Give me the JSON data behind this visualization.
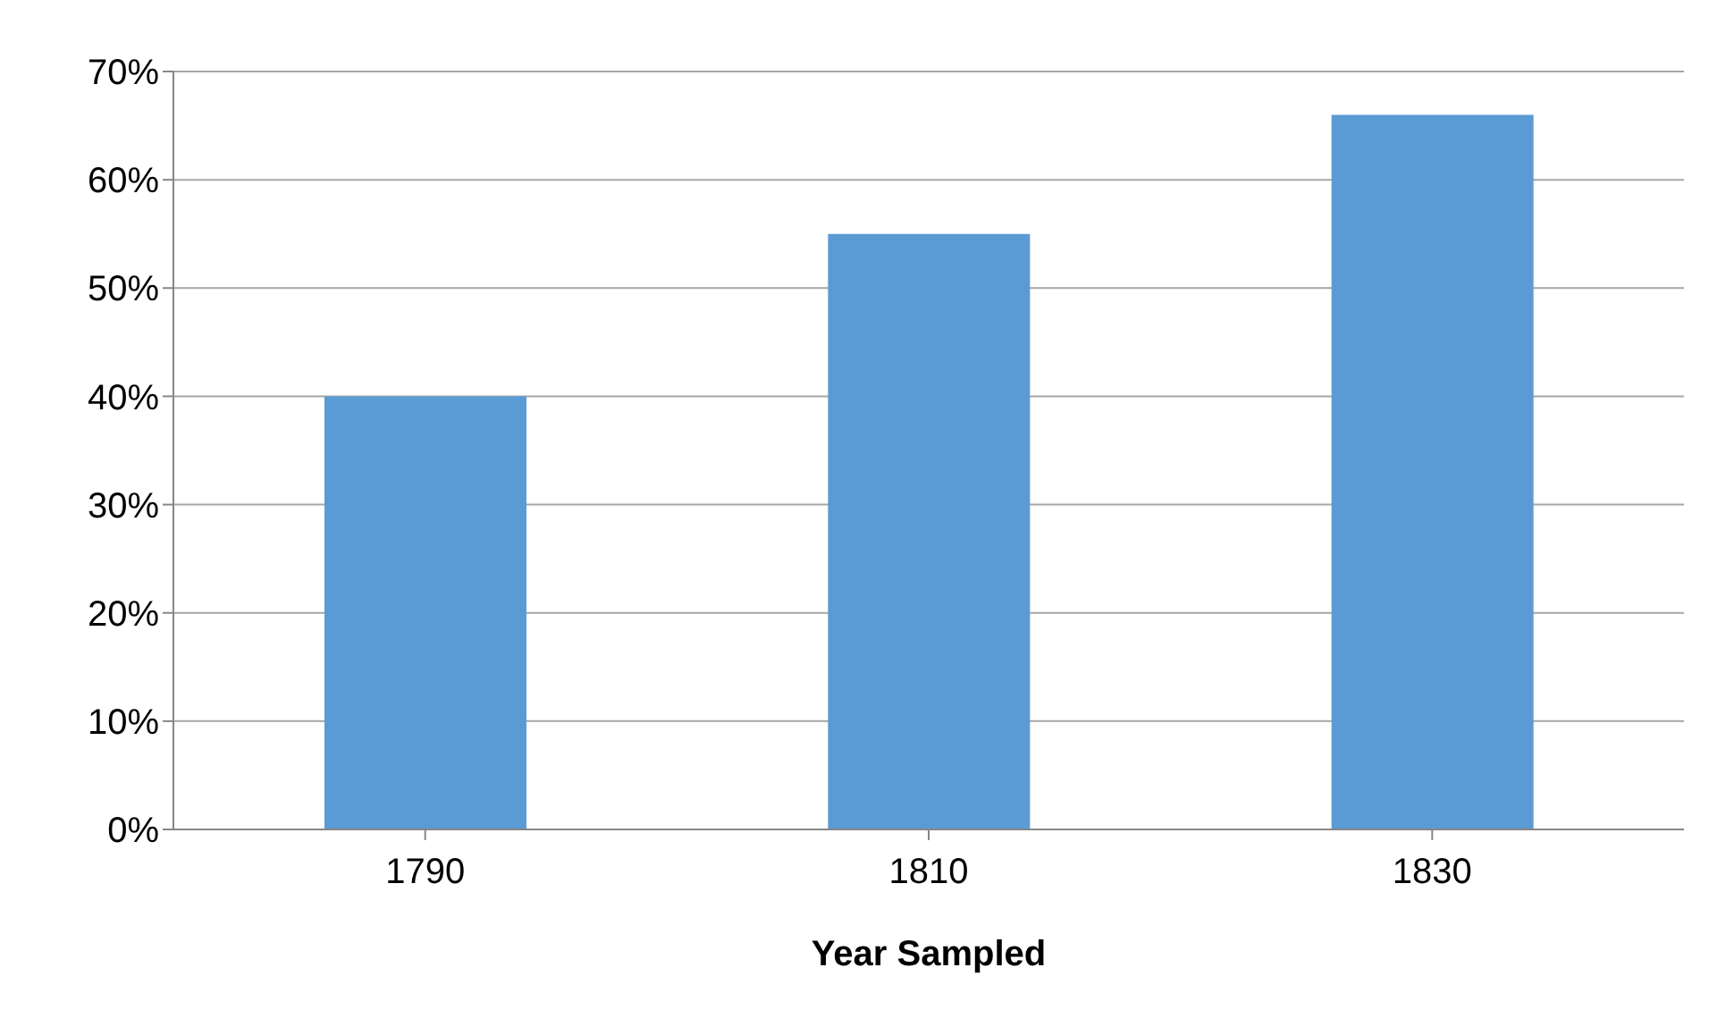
{
  "chart_data": {
    "type": "bar",
    "xlabel": "Year Sampled",
    "categories": [
      "1790",
      "1810",
      "1830"
    ],
    "values": [
      40,
      55,
      66
    ],
    "color": "#5b9bd5",
    "ylim": [
      0,
      70
    ],
    "yticks": [
      {
        "value": 0,
        "label": "0%"
      },
      {
        "value": 10,
        "label": "10%"
      },
      {
        "value": 20,
        "label": "20%"
      },
      {
        "value": 30,
        "label": "30%"
      },
      {
        "value": 40,
        "label": "40%"
      },
      {
        "value": 50,
        "label": "50%"
      },
      {
        "value": 60,
        "label": "60%"
      },
      {
        "value": 70,
        "label": "70%"
      }
    ],
    "grid": "y"
  }
}
